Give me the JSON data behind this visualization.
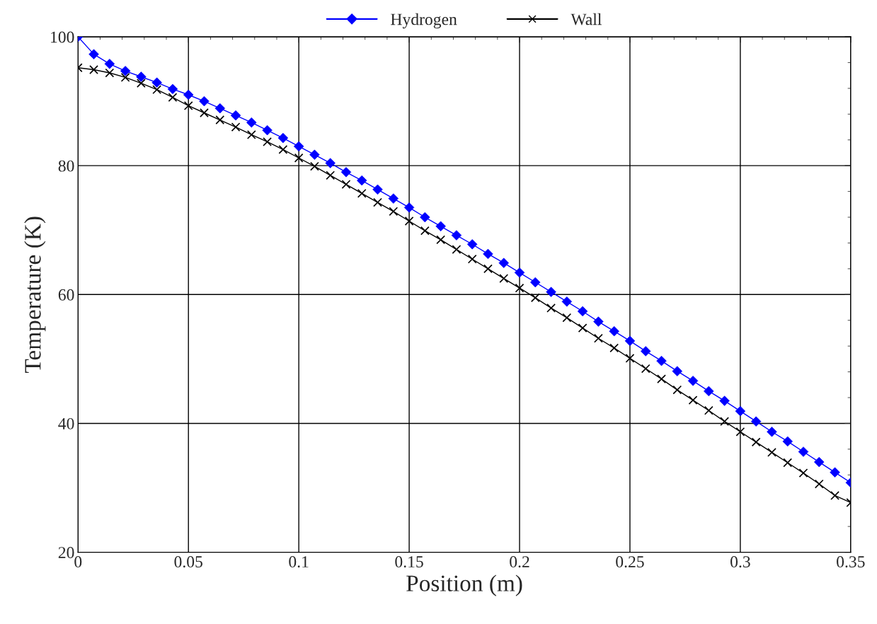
{
  "chart_data": {
    "type": "line",
    "xlabel": "Position (m)",
    "ylabel": "Temperature (K)",
    "x": [
      0,
      0.00714,
      0.01429,
      0.02143,
      0.02857,
      0.03571,
      0.04286,
      0.05,
      0.05714,
      0.06429,
      0.07143,
      0.07857,
      0.08571,
      0.09286,
      0.1,
      0.10714,
      0.11429,
      0.12143,
      0.12857,
      0.13571,
      0.14286,
      0.15,
      0.15714,
      0.16429,
      0.17143,
      0.17857,
      0.18571,
      0.19286,
      0.2,
      0.20714,
      0.21429,
      0.22143,
      0.22857,
      0.23571,
      0.24286,
      0.25,
      0.25714,
      0.26429,
      0.27143,
      0.27857,
      0.28571,
      0.29286,
      0.3,
      0.30714,
      0.31429,
      0.32143,
      0.32857,
      0.33571,
      0.34286,
      0.35
    ],
    "series": [
      {
        "name": "Hydrogen",
        "color": "#0000ff",
        "marker": "diamond",
        "values": [
          100,
          97.3,
          95.8,
          94.7,
          93.8,
          92.9,
          91.9,
          91.0,
          90.0,
          88.9,
          87.8,
          86.7,
          85.5,
          84.3,
          83.0,
          81.7,
          80.4,
          79.0,
          77.7,
          76.3,
          74.9,
          73.5,
          72.0,
          70.6,
          69.2,
          67.8,
          66.3,
          64.9,
          63.4,
          61.9,
          60.4,
          58.9,
          57.4,
          55.8,
          54.3,
          52.8,
          51.2,
          49.7,
          48.1,
          46.6,
          45.0,
          43.5,
          41.9,
          40.3,
          38.7,
          37.2,
          35.6,
          34.0,
          32.4,
          30.8
        ]
      },
      {
        "name": "Wall",
        "color": "#000000",
        "marker": "cross",
        "values": [
          95.2,
          94.9,
          94.4,
          93.7,
          92.8,
          91.8,
          90.6,
          89.3,
          88.2,
          87.1,
          86.0,
          84.8,
          83.7,
          82.5,
          81.2,
          79.9,
          78.5,
          77.1,
          75.7,
          74.3,
          72.9,
          71.4,
          69.9,
          68.5,
          67.0,
          65.5,
          64.0,
          62.5,
          61.0,
          59.5,
          57.9,
          56.4,
          54.8,
          53.2,
          51.7,
          50.1,
          48.5,
          46.9,
          45.2,
          43.6,
          42.0,
          40.3,
          38.7,
          37.1,
          35.5,
          33.9,
          32.3,
          30.6,
          28.8,
          27.7
        ]
      }
    ],
    "xlim": [
      0,
      0.35
    ],
    "xticks": [
      0,
      0.05,
      0.1,
      0.15,
      0.2,
      0.25,
      0.3,
      0.35
    ],
    "ylim": [
      20,
      100
    ],
    "yticks": [
      20,
      40,
      60,
      80,
      100
    ],
    "grid": true,
    "legend": "top"
  }
}
